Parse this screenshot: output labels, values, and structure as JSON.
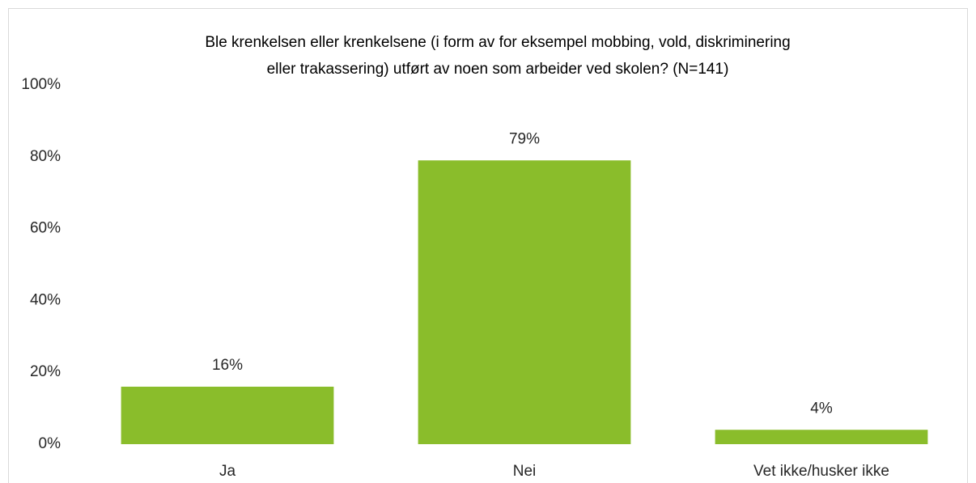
{
  "chart_data": {
    "type": "bar",
    "title": [
      "Ble krenkelsen eller krenkelsene (i form av for eksempel mobbing, vold, diskriminering",
      "eller trakassering) utført av noen som arbeider ved skolen? (N=141)"
    ],
    "categories": [
      "Ja",
      "Nei",
      "Vet ikke/husker ikke"
    ],
    "values": [
      16,
      79,
      4
    ],
    "value_labels": [
      "16%",
      "79%",
      "4%"
    ],
    "color": "#8abd2b",
    "ylim": [
      0,
      100
    ],
    "yticks": [
      {
        "value": 0,
        "label": "0%"
      },
      {
        "value": 20,
        "label": "20%"
      },
      {
        "value": 40,
        "label": "40%"
      },
      {
        "value": 60,
        "label": "60%"
      },
      {
        "value": 80,
        "label": "80%"
      },
      {
        "value": 100,
        "label": "100%"
      }
    ],
    "grid": false
  }
}
